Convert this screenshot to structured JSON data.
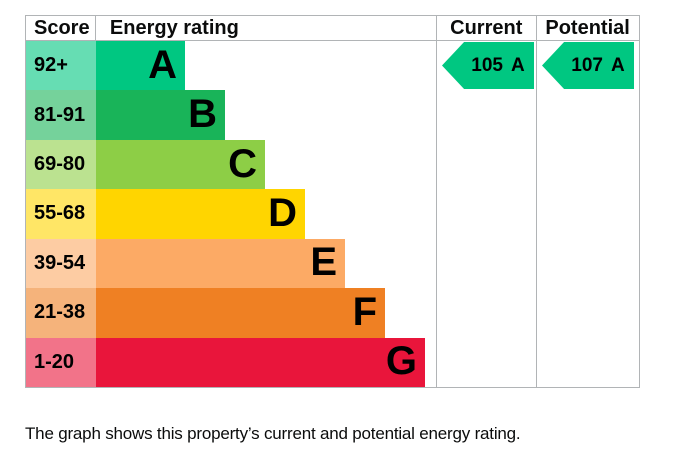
{
  "chart_data": {
    "type": "bar",
    "columns": [
      "Score",
      "Energy rating",
      "Current",
      "Potential"
    ],
    "bands": [
      {
        "letter": "A",
        "score_range": "92+",
        "color": "#00c781",
        "bar_length": 81
      },
      {
        "letter": "B",
        "score_range": "81-91",
        "color": "#19b459",
        "bar_length": 121
      },
      {
        "letter": "C",
        "score_range": "69-80",
        "color": "#8dce46",
        "bar_length": 161
      },
      {
        "letter": "D",
        "score_range": "55-68",
        "color": "#ffd500",
        "bar_length": 201
      },
      {
        "letter": "E",
        "score_range": "39-54",
        "color": "#fcaa65",
        "bar_length": 241
      },
      {
        "letter": "F",
        "score_range": "21-38",
        "color": "#ef8023",
        "bar_length": 281
      },
      {
        "letter": "G",
        "score_range": "1-20",
        "color": "#e9153b",
        "bar_length": 321
      }
    ],
    "current": {
      "value": "105",
      "band": "A",
      "color": "#00c781"
    },
    "potential": {
      "value": "107",
      "band": "A",
      "color": "#00c781"
    },
    "legend_position": "none",
    "caption": "The graph shows this property’s current and potential energy rating."
  },
  "colors": {
    "border": "#b1b4b6",
    "text": "#0b0c0c"
  }
}
